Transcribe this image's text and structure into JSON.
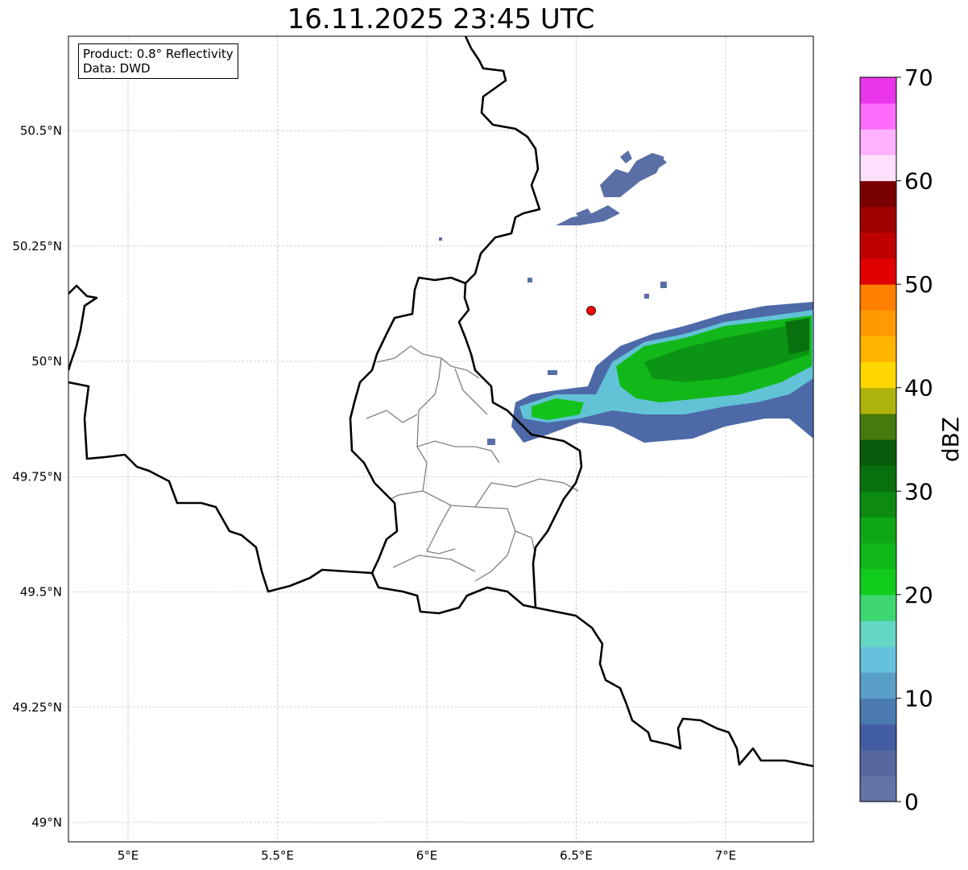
{
  "title": "16.11.2025 23:45 UTC",
  "legend": {
    "product": "Product: 0.8° Reflectivity",
    "data": "Data: DWD"
  },
  "axes": {
    "x_ticks": [
      "5°E",
      "5.5°E",
      "6°E",
      "6.5°E",
      "7°E"
    ],
    "x_values": [
      5,
      5.5,
      6,
      6.5,
      7
    ],
    "y_ticks": [
      "50.5°N",
      "50.25°N",
      "50°N",
      "49.75°N",
      "49.5°N",
      "49.25°N",
      "49°N"
    ],
    "y_values": [
      50.5,
      50.25,
      50,
      49.75,
      49.5,
      49.25,
      49
    ],
    "lon_range": [
      4.8,
      7.3
    ],
    "lat_range": [
      48.95,
      50.7
    ]
  },
  "radar_site": {
    "lon": 6.55,
    "lat": 50.11,
    "color": "#ff0000"
  },
  "colorbar": {
    "label": "dBZ",
    "min": 0,
    "max": 70,
    "step": 2.5,
    "ticks": [
      "0",
      "10",
      "20",
      "30",
      "40",
      "50",
      "60",
      "70"
    ],
    "colors": [
      "#6473a6",
      "#56689f",
      "#435da3",
      "#4b7ab0",
      "#5a9fc7",
      "#66c2dc",
      "#63d6c4",
      "#3dd670",
      "#12cc1c",
      "#10b81a",
      "#0ea614",
      "#0c8a12",
      "#09700e",
      "#075a0a",
      "#477a0c",
      "#adb30a",
      "#ffd700",
      "#ffb500",
      "#ff9a00",
      "#ff7f00",
      "#e00000",
      "#c00000",
      "#a00000",
      "#7a0000",
      "#ffe0ff",
      "#ffb2ff",
      "#ff6dff",
      "#ea35ea"
    ]
  }
}
